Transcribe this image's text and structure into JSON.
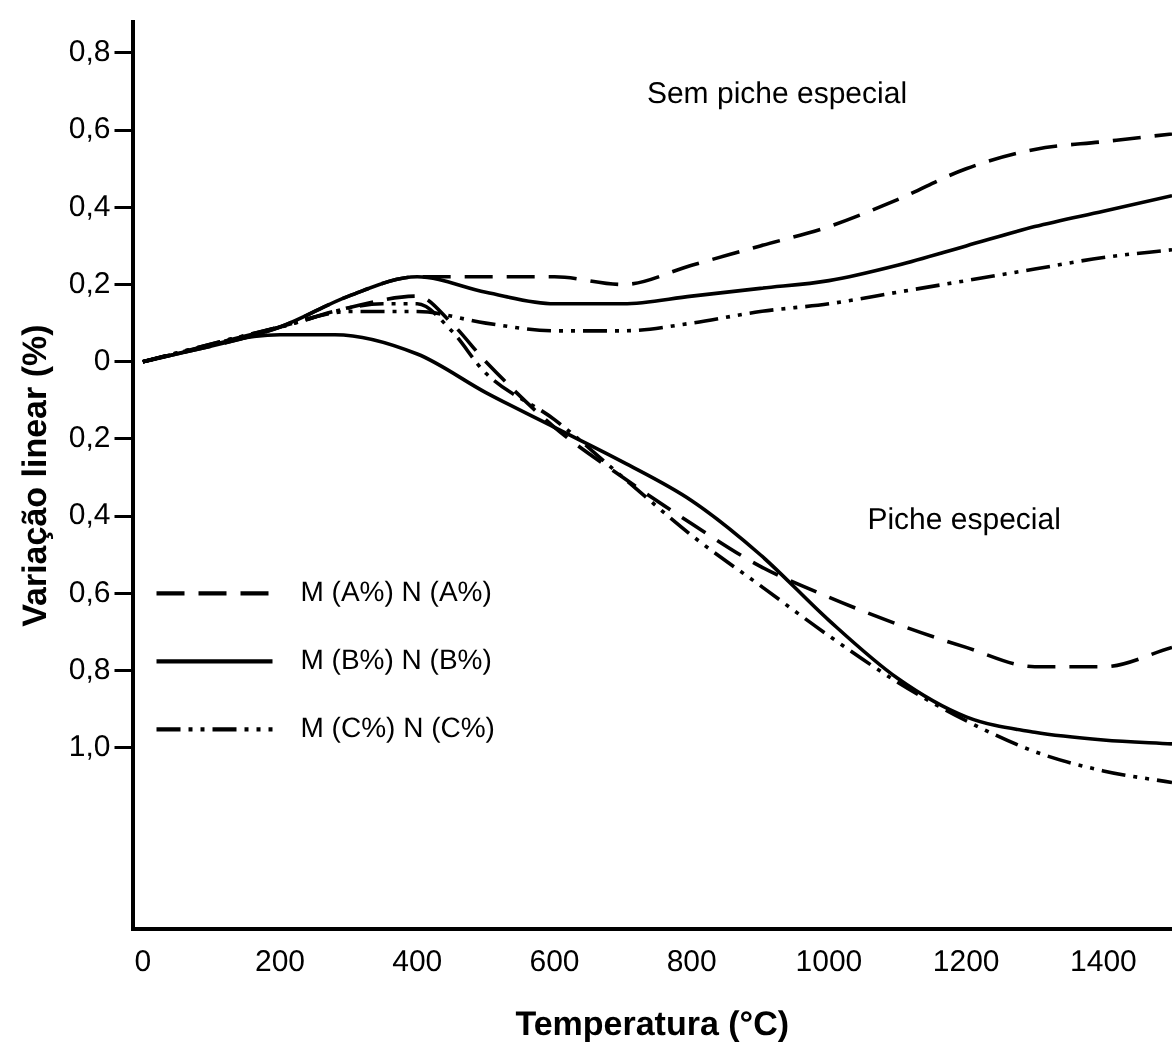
{
  "chart_data": {
    "type": "line",
    "xlabel": "Temperatura (°C)",
    "ylabel": "Variação linear (%)",
    "xlim": [
      -15,
      1500
    ],
    "xticks": [
      0,
      200,
      400,
      600,
      800,
      1000,
      1200,
      1400
    ],
    "ylim": [
      -1.47,
      0.88
    ],
    "yticks": [
      {
        "value": 0.8,
        "label": "0,8"
      },
      {
        "value": 0.6,
        "label": "0,6"
      },
      {
        "value": 0.4,
        "label": "0,4"
      },
      {
        "value": 0.2,
        "label": "0,2"
      },
      0,
      {
        "value": -0.2,
        "label": "0,2"
      },
      {
        "value": -0.4,
        "label": "0,4"
      },
      {
        "value": -0.6,
        "label": "0,6"
      },
      {
        "value": -0.8,
        "label": "0,8"
      },
      {
        "value": -1.0,
        "label": "1,0"
      }
    ],
    "grid": false,
    "legend": "left",
    "marker": "none",
    "series": [
      {
        "name": "M (A%) N (A%)",
        "color": "#000000",
        "line_style": "dashed",
        "x": [
          0,
          200,
          300,
          400,
          500,
          600,
          700,
          800,
          900,
          1000,
          1100,
          1200,
          1300,
          1400,
          1500
        ],
        "values": [
          0,
          0.09,
          0.17,
          0.22,
          0.22,
          0.22,
          0.2,
          0.25,
          0.3,
          0.35,
          0.42,
          0.5,
          0.55,
          0.57,
          0.59
        ]
      },
      {
        "name": "M (B%) N (B%)",
        "color": "#000000",
        "line_style": "solid",
        "x": [
          0,
          200,
          300,
          400,
          500,
          600,
          700,
          800,
          900,
          1000,
          1100,
          1200,
          1300,
          1400,
          1500
        ],
        "values": [
          0,
          0.09,
          0.17,
          0.22,
          0.18,
          0.15,
          0.15,
          0.17,
          0.19,
          0.21,
          0.25,
          0.3,
          0.35,
          0.39,
          0.43
        ]
      },
      {
        "name": "M (C%) N (C%)",
        "color": "#000000",
        "line_style": "dashdot",
        "x": [
          0,
          200,
          300,
          400,
          500,
          600,
          700,
          800,
          900,
          1000,
          1100,
          1200,
          1300,
          1400,
          1500
        ],
        "values": [
          0,
          0.09,
          0.13,
          0.13,
          0.1,
          0.08,
          0.08,
          0.1,
          0.13,
          0.15,
          0.18,
          0.21,
          0.24,
          0.27,
          0.29
        ]
      },
      {
        "color": "#000000",
        "line_style": "dashed",
        "x": [
          0,
          200,
          300,
          400,
          450,
          500,
          600,
          700,
          800,
          900,
          1000,
          1100,
          1200,
          1300,
          1400,
          1500
        ],
        "values": [
          0,
          0.09,
          0.14,
          0.17,
          0.1,
          0,
          -0.17,
          -0.3,
          -0.42,
          -0.53,
          -0.61,
          -0.68,
          -0.74,
          -0.79,
          -0.79,
          -0.74
        ]
      },
      {
        "color": "#000000",
        "line_style": "solid",
        "x": [
          0,
          200,
          280,
          400,
          500,
          600,
          700,
          800,
          900,
          1000,
          1100,
          1200,
          1300,
          1400,
          1500
        ],
        "values": [
          0,
          0.07,
          0.07,
          0.02,
          -0.08,
          -0.17,
          -0.26,
          -0.36,
          -0.5,
          -0.67,
          -0.82,
          -0.92,
          -0.96,
          -0.98,
          -0.99
        ]
      },
      {
        "color": "#000000",
        "line_style": "dashdot",
        "x": [
          0,
          200,
          350,
          400,
          450,
          500,
          600,
          700,
          800,
          900,
          1000,
          1100,
          1200,
          1300,
          1400,
          1500
        ],
        "values": [
          0,
          0.09,
          0.15,
          0.15,
          0.08,
          -0.03,
          -0.15,
          -0.3,
          -0.45,
          -0.58,
          -0.71,
          -0.83,
          -0.93,
          -1.01,
          -1.06,
          -1.09
        ]
      }
    ],
    "annotations": [
      "Sem piche especial",
      "Piche especial"
    ]
  }
}
